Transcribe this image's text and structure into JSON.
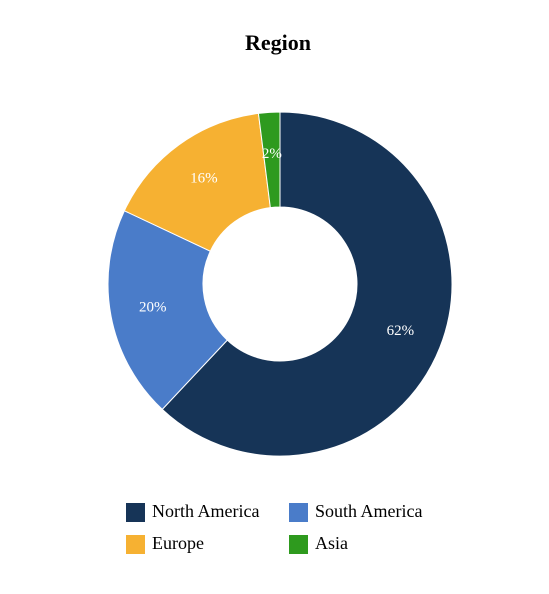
{
  "chart_data": {
    "type": "pie",
    "title": "Region",
    "categories": [
      "North America",
      "South America",
      "Europe",
      "Asia"
    ],
    "values": [
      62,
      20,
      16,
      2
    ],
    "value_labels": [
      "62%",
      "20%",
      "16%",
      "2%"
    ],
    "colors": [
      "#163457",
      "#4a7cc9",
      "#f6b132",
      "#2e9a1e"
    ],
    "donut": true,
    "legend": "bottom"
  }
}
